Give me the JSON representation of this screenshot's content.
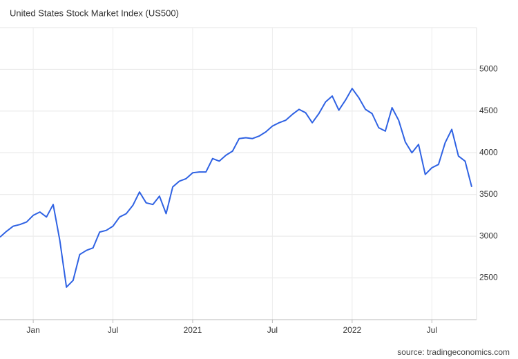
{
  "chart_data": {
    "type": "line",
    "title": "United States Stock Market Index (US500)",
    "source": "source: tradingeconomics.com",
    "categories": [
      null,
      null,
      null,
      null,
      null,
      "Jan",
      null,
      null,
      null,
      null,
      null,
      null,
      null,
      null,
      null,
      null,
      null,
      "Jul",
      null,
      null,
      null,
      null,
      null,
      null,
      null,
      null,
      null,
      null,
      null,
      "2021",
      null,
      null,
      null,
      null,
      null,
      null,
      null,
      null,
      null,
      null,
      null,
      "Jul",
      null,
      null,
      null,
      null,
      null,
      null,
      null,
      null,
      null,
      null,
      null,
      "2022",
      null,
      null,
      null,
      null,
      null,
      null,
      null,
      null,
      null,
      null,
      null,
      "Jul",
      null,
      null,
      null,
      null,
      null,
      null
    ],
    "series": [
      {
        "name": "US500",
        "color": "#2f62e3",
        "values": [
          2990,
          3060,
          3120,
          3140,
          3170,
          3250,
          3290,
          3230,
          3380,
          2950,
          2390,
          2470,
          2780,
          2830,
          2860,
          3050,
          3070,
          3120,
          3230,
          3270,
          3370,
          3530,
          3400,
          3380,
          3480,
          3270,
          3590,
          3660,
          3690,
          3760,
          3770,
          3770,
          3930,
          3900,
          3970,
          4020,
          4170,
          4180,
          4170,
          4200,
          4250,
          4320,
          4360,
          4390,
          4460,
          4520,
          4480,
          4360,
          4470,
          4610,
          4680,
          4510,
          4630,
          4770,
          4660,
          4520,
          4470,
          4300,
          4260,
          4540,
          4390,
          4130,
          4000,
          4100,
          3740,
          3820,
          3860,
          4120,
          4280,
          3960,
          3900,
          3590
        ]
      }
    ],
    "ylim": [
      2000,
      5500
    ],
    "yticks": [
      2500,
      3000,
      3500,
      4000,
      4500,
      5000
    ],
    "grid": true
  }
}
